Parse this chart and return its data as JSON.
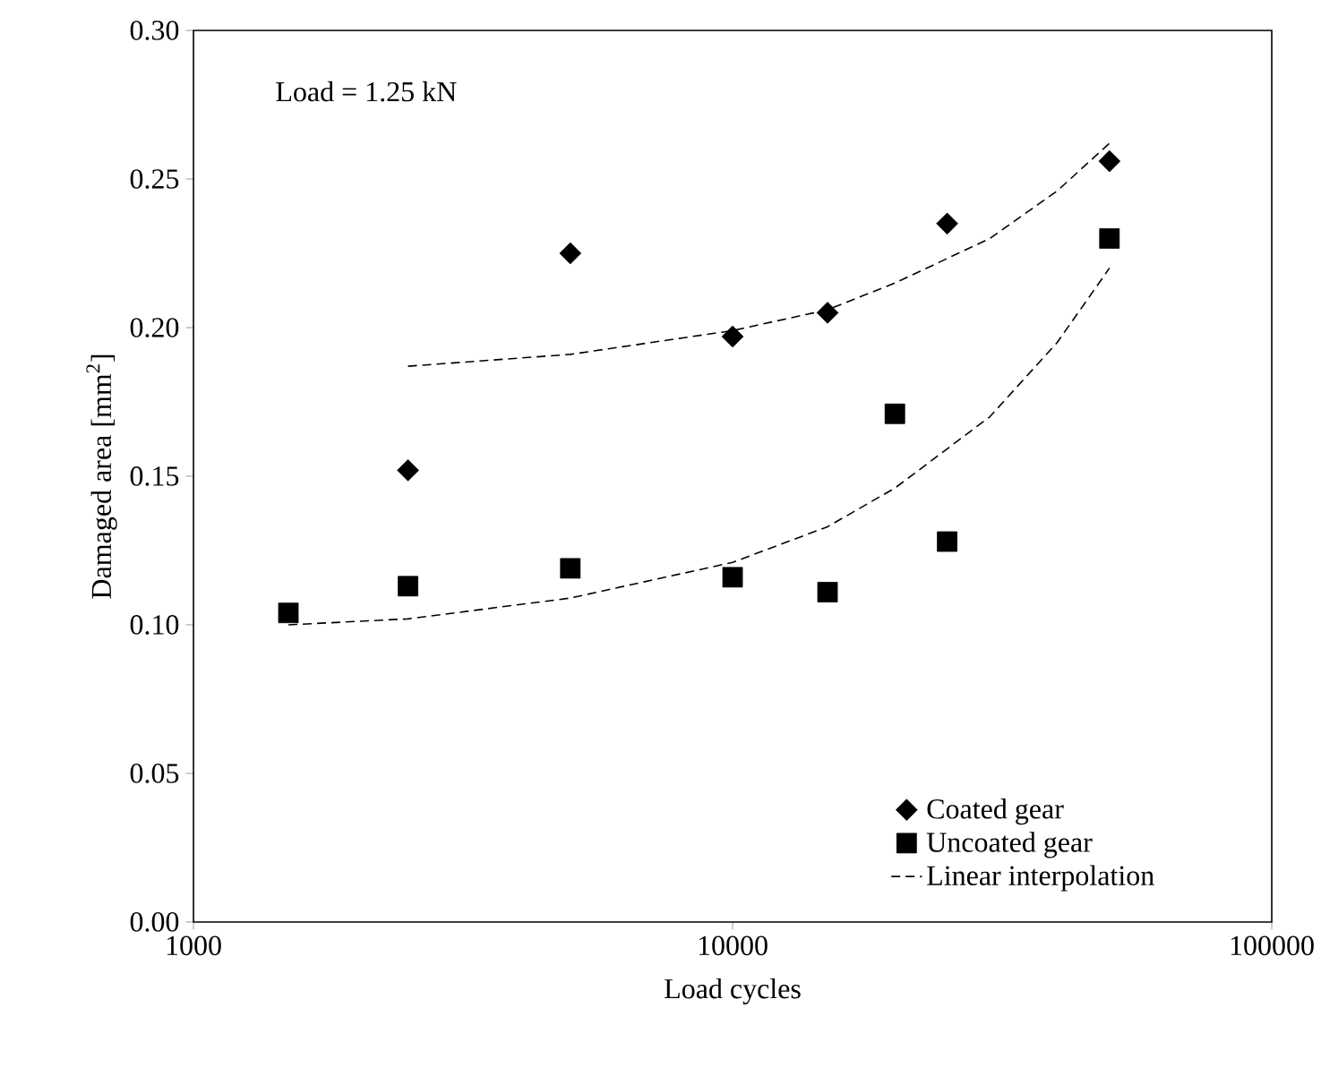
{
  "chart_data": {
    "type": "scatter",
    "xlabel": "Load cycles",
    "ylabel": "Damaged area [mm$^{2}$]",
    "log": "x",
    "xlim": [
      1000,
      100000
    ],
    "ylim": [
      0,
      0.3
    ],
    "xticks": [
      1000,
      10000,
      100000
    ],
    "yticks": [
      {
        "value": 0,
        "label": "0.00"
      },
      {
        "value": 0.05,
        "label": "0.05"
      },
      {
        "value": 0.1,
        "label": "0.10"
      },
      {
        "value": 0.15,
        "label": "0.15"
      },
      {
        "value": 0.2,
        "label": "0.20"
      },
      {
        "value": 0.25,
        "label": "0.25"
      },
      {
        "value": 0.3,
        "label": "0.30"
      }
    ],
    "grid": false,
    "legend": "bottom right",
    "annotations": [
      "Load = 1.25 kN"
    ],
    "series": [
      {
        "name": "Coated gear",
        "marker": "diamond",
        "color": "#000000",
        "x": [
          2500,
          5000,
          10000,
          15000,
          25000,
          50000
        ],
        "values": [
          0.152,
          0.225,
          0.197,
          0.205,
          0.235,
          0.256
        ]
      },
      {
        "name": "Uncoated gear",
        "marker": "square",
        "color": "#000000",
        "x": [
          1500,
          2500,
          5000,
          10000,
          15000,
          20000,
          25000,
          50000
        ],
        "values": [
          0.104,
          0.113,
          0.119,
          0.116,
          0.111,
          0.171,
          0.128,
          0.23
        ]
      },
      {
        "name": "Linear interpolation",
        "type": "line",
        "marker": "none",
        "line_style": "dashed",
        "color": "#000000",
        "x": [
          1500,
          2500,
          5000,
          10000,
          15000,
          20000,
          30000,
          40000,
          50000
        ],
        "values": [
          0.1,
          0.102,
          0.109,
          0.121,
          0.133,
          0.146,
          0.17,
          0.195,
          0.22
        ]
      },
      {
        "type": "line",
        "marker": "none",
        "line_style": "dashed",
        "color": "#000000",
        "x": [
          2500,
          5000,
          10000,
          15000,
          20000,
          30000,
          40000,
          50000
        ],
        "values": [
          0.187,
          0.191,
          0.199,
          0.206,
          0.215,
          0.23,
          0.246,
          0.262
        ]
      }
    ]
  }
}
